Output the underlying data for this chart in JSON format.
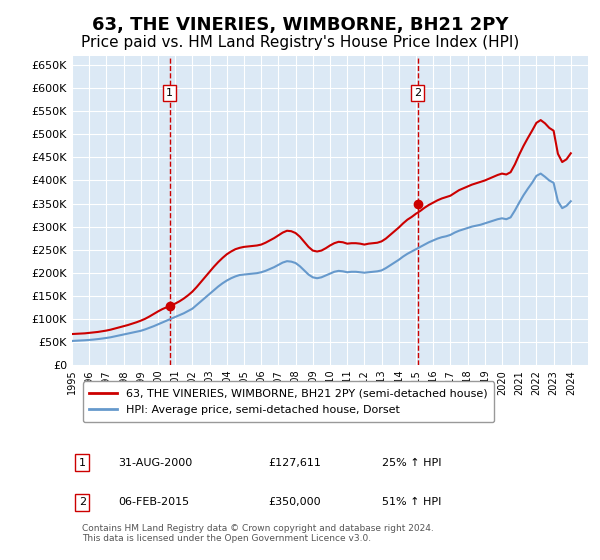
{
  "title": "63, THE VINERIES, WIMBORNE, BH21 2PY",
  "subtitle": "Price paid vs. HM Land Registry's House Price Index (HPI)",
  "title_fontsize": 13,
  "subtitle_fontsize": 11,
  "background_color": "#dce9f5",
  "plot_bg_color": "#dce9f5",
  "fig_bg_color": "#ffffff",
  "ylim": [
    0,
    670000
  ],
  "yticks": [
    0,
    50000,
    100000,
    150000,
    200000,
    250000,
    300000,
    350000,
    400000,
    450000,
    500000,
    550000,
    600000,
    650000
  ],
  "ytick_labels": [
    "£0",
    "£50K",
    "£100K",
    "£150K",
    "£200K",
    "£250K",
    "£300K",
    "£350K",
    "£400K",
    "£450K",
    "£500K",
    "£550K",
    "£600K",
    "£650K"
  ],
  "xlim_start": 1995.0,
  "xlim_end": 2025.0,
  "xtick_years": [
    1995,
    1996,
    1997,
    1998,
    1999,
    2000,
    2001,
    2002,
    2003,
    2004,
    2005,
    2006,
    2007,
    2008,
    2009,
    2010,
    2011,
    2012,
    2013,
    2014,
    2015,
    2016,
    2017,
    2018,
    2019,
    2020,
    2021,
    2022,
    2023,
    2024
  ],
  "red_line_color": "#cc0000",
  "blue_line_color": "#6699cc",
  "sale1_x": 2000.67,
  "sale1_y": 127611,
  "sale2_x": 2015.09,
  "sale2_y": 350000,
  "marker1_label": "1",
  "marker2_label": "2",
  "legend_label_red": "63, THE VINERIES, WIMBORNE, BH21 2PY (semi-detached house)",
  "legend_label_blue": "HPI: Average price, semi-detached house, Dorset",
  "table_rows": [
    {
      "num": "1",
      "date": "31-AUG-2000",
      "price": "£127,611",
      "hpi": "25% ↑ HPI"
    },
    {
      "num": "2",
      "date": "06-FEB-2015",
      "price": "£350,000",
      "hpi": "51% ↑ HPI"
    }
  ],
  "footnote": "Contains HM Land Registry data © Crown copyright and database right 2024.\nThis data is licensed under the Open Government Licence v3.0.",
  "hpi_data": {
    "x": [
      1995.0,
      1995.25,
      1995.5,
      1995.75,
      1996.0,
      1996.25,
      1996.5,
      1996.75,
      1997.0,
      1997.25,
      1997.5,
      1997.75,
      1998.0,
      1998.25,
      1998.5,
      1998.75,
      1999.0,
      1999.25,
      1999.5,
      1999.75,
      2000.0,
      2000.25,
      2000.5,
      2000.75,
      2001.0,
      2001.25,
      2001.5,
      2001.75,
      2002.0,
      2002.25,
      2002.5,
      2002.75,
      2003.0,
      2003.25,
      2003.5,
      2003.75,
      2004.0,
      2004.25,
      2004.5,
      2004.75,
      2005.0,
      2005.25,
      2005.5,
      2005.75,
      2006.0,
      2006.25,
      2006.5,
      2006.75,
      2007.0,
      2007.25,
      2007.5,
      2007.75,
      2008.0,
      2008.25,
      2008.5,
      2008.75,
      2009.0,
      2009.25,
      2009.5,
      2009.75,
      2010.0,
      2010.25,
      2010.5,
      2010.75,
      2011.0,
      2011.25,
      2011.5,
      2011.75,
      2012.0,
      2012.25,
      2012.5,
      2012.75,
      2013.0,
      2013.25,
      2013.5,
      2013.75,
      2014.0,
      2014.25,
      2014.5,
      2014.75,
      2015.0,
      2015.25,
      2015.5,
      2015.75,
      2016.0,
      2016.25,
      2016.5,
      2016.75,
      2017.0,
      2017.25,
      2017.5,
      2017.75,
      2018.0,
      2018.25,
      2018.5,
      2018.75,
      2019.0,
      2019.25,
      2019.5,
      2019.75,
      2020.0,
      2020.25,
      2020.5,
      2020.75,
      2021.0,
      2021.25,
      2021.5,
      2021.75,
      2022.0,
      2022.25,
      2022.5,
      2022.75,
      2023.0,
      2023.25,
      2023.5,
      2023.75,
      2024.0
    ],
    "y": [
      52000,
      52500,
      53000,
      53500,
      54200,
      55000,
      56000,
      57200,
      58500,
      60000,
      62000,
      64000,
      66000,
      68000,
      70000,
      72000,
      74000,
      77000,
      80500,
      84000,
      88000,
      92000,
      96000,
      100000,
      104000,
      108000,
      112000,
      117000,
      122000,
      130000,
      138000,
      146000,
      154000,
      162000,
      170000,
      177000,
      183000,
      188000,
      192000,
      195000,
      196000,
      197000,
      198000,
      199000,
      201000,
      204000,
      208000,
      212000,
      217000,
      222000,
      225000,
      224000,
      221000,
      214000,
      205000,
      196000,
      190000,
      188000,
      190000,
      194000,
      198000,
      202000,
      204000,
      203000,
      201000,
      202000,
      202000,
      201000,
      200000,
      201000,
      202000,
      203000,
      205000,
      210000,
      216000,
      222000,
      228000,
      235000,
      241000,
      246000,
      251000,
      256000,
      261000,
      266000,
      270000,
      274000,
      277000,
      279000,
      282000,
      287000,
      291000,
      294000,
      297000,
      300000,
      302000,
      304000,
      307000,
      310000,
      313000,
      316000,
      318000,
      316000,
      320000,
      335000,
      352000,
      368000,
      382000,
      395000,
      410000,
      415000,
      408000,
      400000,
      395000,
      355000,
      340000,
      345000,
      355000
    ]
  },
  "red_line_data": {
    "x": [
      1995.0,
      1995.25,
      1995.5,
      1995.75,
      1996.0,
      1996.25,
      1996.5,
      1996.75,
      1997.0,
      1997.25,
      1997.5,
      1997.75,
      1998.0,
      1998.25,
      1998.5,
      1998.75,
      1999.0,
      1999.25,
      1999.5,
      1999.75,
      2000.0,
      2000.25,
      2000.5,
      2000.75,
      2001.0,
      2001.25,
      2001.5,
      2001.75,
      2002.0,
      2002.25,
      2002.5,
      2002.75,
      2003.0,
      2003.25,
      2003.5,
      2003.75,
      2004.0,
      2004.25,
      2004.5,
      2004.75,
      2005.0,
      2005.25,
      2005.5,
      2005.75,
      2006.0,
      2006.25,
      2006.5,
      2006.75,
      2007.0,
      2007.25,
      2007.5,
      2007.75,
      2008.0,
      2008.25,
      2008.5,
      2008.75,
      2009.0,
      2009.25,
      2009.5,
      2009.75,
      2010.0,
      2010.25,
      2010.5,
      2010.75,
      2011.0,
      2011.25,
      2011.5,
      2011.75,
      2012.0,
      2012.25,
      2012.5,
      2012.75,
      2013.0,
      2013.25,
      2013.5,
      2013.75,
      2014.0,
      2014.25,
      2014.5,
      2014.75,
      2015.0,
      2015.25,
      2015.5,
      2015.75,
      2016.0,
      2016.25,
      2016.5,
      2016.75,
      2017.0,
      2017.25,
      2017.5,
      2017.75,
      2018.0,
      2018.25,
      2018.5,
      2018.75,
      2019.0,
      2019.25,
      2019.5,
      2019.75,
      2020.0,
      2020.25,
      2020.5,
      2020.75,
      2021.0,
      2021.25,
      2021.5,
      2021.75,
      2022.0,
      2022.25,
      2022.5,
      2022.75,
      2023.0,
      2023.25,
      2023.5,
      2023.75,
      2024.0
    ],
    "y": [
      67000,
      67500,
      68000,
      68500,
      69500,
      70500,
      71500,
      73000,
      74500,
      76500,
      79000,
      81500,
      84000,
      86500,
      89500,
      92500,
      96000,
      100000,
      105000,
      110500,
      116000,
      121000,
      125000,
      127611,
      133000,
      138000,
      144000,
      151000,
      159000,
      169000,
      180000,
      191000,
      202000,
      213000,
      223000,
      232000,
      240000,
      246000,
      251000,
      254000,
      256000,
      257000,
      258000,
      259000,
      261000,
      265000,
      270000,
      275000,
      281000,
      287000,
      291000,
      290000,
      286000,
      278000,
      267000,
      256000,
      248000,
      246000,
      248000,
      253000,
      259000,
      264000,
      267000,
      266000,
      263000,
      264000,
      264000,
      263000,
      261000,
      263000,
      264000,
      265000,
      268000,
      274000,
      282000,
      290000,
      298000,
      307000,
      315000,
      321000,
      328000,
      334000,
      341000,
      347000,
      352000,
      357000,
      361000,
      364000,
      367000,
      373000,
      379000,
      383000,
      387000,
      391000,
      394000,
      397000,
      400000,
      404000,
      408000,
      412000,
      415000,
      413000,
      418000,
      435000,
      456000,
      475000,
      492000,
      508000,
      525000,
      531000,
      524000,
      514000,
      508000,
      458000,
      440000,
      446000,
      459000
    ]
  }
}
